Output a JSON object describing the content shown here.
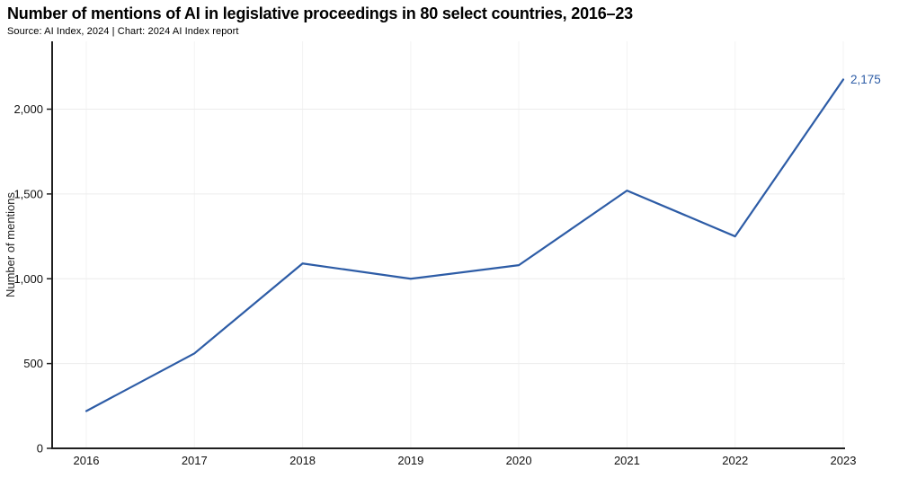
{
  "header": {
    "title": "Number of mentions of AI in legislative proceedings in 80 select countries, 2016–23",
    "source_line": "Source: AI Index, 2024 | Chart: 2024 AI Index report"
  },
  "chart_data": {
    "type": "line",
    "title": "Number of mentions of AI in legislative proceedings in 80 select countries, 2016–23",
    "x": [
      "2016",
      "2017",
      "2018",
      "2019",
      "2020",
      "2021",
      "2022",
      "2023"
    ],
    "values": [
      220,
      560,
      1090,
      1000,
      1080,
      1520,
      1250,
      2175
    ],
    "xlabel": "",
    "ylabel": "Number of mentions",
    "ylim": [
      0,
      2400
    ],
    "y_ticks": [
      {
        "value": 0,
        "label": "0"
      },
      {
        "value": 500,
        "label": "500"
      },
      {
        "value": 1000,
        "label": "1,000"
      },
      {
        "value": 1500,
        "label": "1,500"
      },
      {
        "value": 2000,
        "label": "2,000"
      }
    ],
    "end_label": "2,175",
    "grid": true,
    "legend_position": "none",
    "colors": {
      "line": "#2d5ca6",
      "end_label": "#2d5ca6",
      "axis": "#1f1f1f",
      "tick_text": "#111111",
      "h_gridline": "#ececec",
      "v_gridline": "#f3f3f3"
    }
  }
}
